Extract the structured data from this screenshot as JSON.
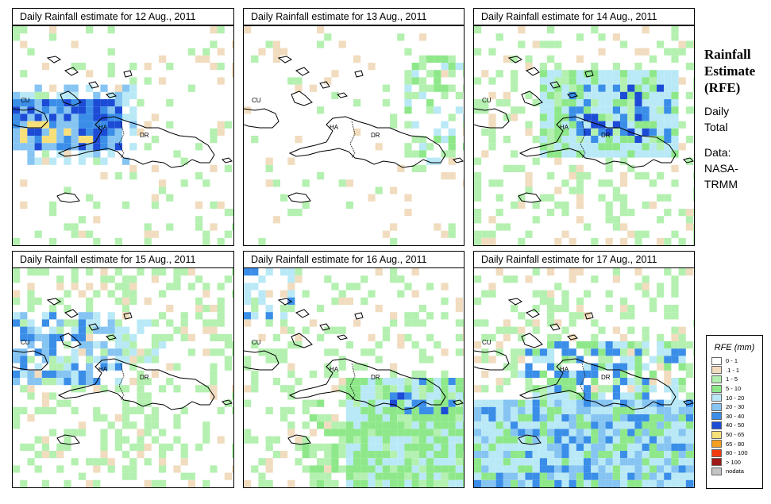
{
  "panels": [
    {
      "title": "Daily Rainfall estimate for  12 Aug., 2011",
      "labels": [
        "CU",
        "HA",
        "DR"
      ]
    },
    {
      "title": "Daily Rainfall estimate for  13 Aug., 2011",
      "labels": [
        "CU",
        "HA",
        "DR"
      ]
    },
    {
      "title": "Daily Rainfall estimate for  14 Aug., 2011",
      "labels": [
        "CU",
        "HA",
        "DR"
      ]
    },
    {
      "title": "Daily Rainfall estimate for  15 Aug., 2011",
      "labels": [
        "CU",
        "HA",
        "DR"
      ]
    },
    {
      "title": "Daily Rainfall estimate for  16 Aug., 2011",
      "labels": [
        "CU",
        "HA",
        "DR"
      ]
    },
    {
      "title": "Daily Rainfall estimate for  17 Aug., 2011",
      "labels": [
        "CU",
        "HA",
        "DR"
      ]
    }
  ],
  "side": {
    "title_line1": "Rainfall",
    "title_line2": "Estimate",
    "title_line3": "(RFE)",
    "line1": "Daily",
    "line2": "Total",
    "line3": "Data:",
    "line4": "NASA-",
    "line5": "TRMM"
  },
  "legend": {
    "title": "RFE (mm)",
    "items": [
      {
        "label": "0 - 1",
        "color": "#ffffff"
      },
      {
        "label": ".1 - 1",
        "color": "#f1dcbf"
      },
      {
        "label": "1 - 5",
        "color": "#b4f0b0"
      },
      {
        "label": "5 - 10",
        "color": "#8ee88a"
      },
      {
        "label": "10 - 20",
        "color": "#b9e9f6"
      },
      {
        "label": "20 - 30",
        "color": "#86c4f2"
      },
      {
        "label": "30 - 40",
        "color": "#3a8ee8"
      },
      {
        "label": "40 - 50",
        "color": "#1c4cd6"
      },
      {
        "label": "50 - 65",
        "color": "#f7e07a"
      },
      {
        "label": "65 - 80",
        "color": "#f5a020"
      },
      {
        "label": "80 - 100",
        "color": "#f23a10"
      },
      {
        "label": "> 100",
        "color": "#a01818"
      },
      {
        "label": "nodata",
        "color": "#c4c4c4"
      }
    ]
  }
}
